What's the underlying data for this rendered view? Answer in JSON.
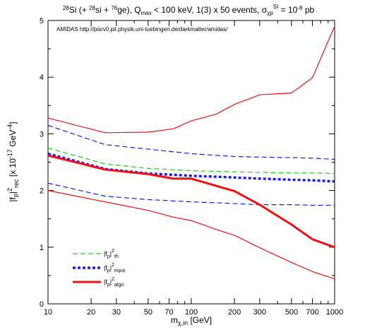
{
  "chart_data": {
    "type": "line",
    "title": "28Si (+ 28si + 76ge), Qmax < 100 keV, 1(3) x 50 events, σχpSI = 10−8 pb",
    "title_parts": {
      "sup1": "28",
      "t1": "Si (+ ",
      "sup2": "28",
      "t2": "si + ",
      "sup3": "76",
      "t3": "ge), Q",
      "sub_max": "max",
      "t4": " < 100 keV, 1(3) x 50 events, σ",
      "sub_chi": "χp",
      "sup_si": "SI",
      "t5": " = 10",
      "sup_exp": "-8",
      "t6": " pb"
    },
    "annotation": "AMIDAS   http://pisrv0.pit.physik.uni-tuebingen.de/darkmatter/amidas/",
    "xlabel": "mχ,in [GeV]",
    "xlabel_parts": {
      "main": "m",
      "sub": "χ,in",
      "rest": " [GeV]"
    },
    "ylabel": "|fp|2rec [x 10−17 GeV−4]",
    "ylabel_parts": {
      "a": "|f",
      "sub_p": "p",
      "b": "|",
      "sup_2": "2",
      "sub_rec": "rec",
      "c": "  [x 10",
      "sup_m17": "-17",
      "d": " GeV",
      "sup_m4": "-4",
      "e": "]"
    },
    "x_scale": "log",
    "xlim": [
      10,
      1000
    ],
    "ylim": [
      0,
      5
    ],
    "x_ticks": [
      10,
      20,
      30,
      50,
      70,
      100,
      200,
      300,
      500,
      700,
      1000
    ],
    "y_ticks": [
      0,
      1,
      2,
      3,
      4,
      5
    ],
    "grid": false,
    "legend_position": "bottom-left",
    "legend": [
      {
        "base": "|f",
        "sub1": "p",
        "mid": "|",
        "sup": "2",
        "sub2": "th",
        "series": "th"
      },
      {
        "base": "|f",
        "sub1": "p",
        "mid": "|",
        "sup": "2",
        "sub2": "input",
        "series": "input"
      },
      {
        "base": "|f",
        "sub1": "p",
        "mid": "|",
        "sup": "2",
        "sub2": "algo",
        "series": "algo"
      }
    ],
    "colors": {
      "th": "#22cc22",
      "input": "#1a1aee",
      "algo": "#ee1111"
    },
    "series": [
      {
        "key": "th",
        "role": "main",
        "style": "dashed-thin",
        "color": "#22cc22",
        "x": [
          10,
          25,
          50,
          100,
          200,
          300,
          500,
          700,
          1000
        ],
        "y": [
          2.75,
          2.47,
          2.39,
          2.35,
          2.33,
          2.32,
          2.31,
          2.31,
          2.3
        ]
      },
      {
        "key": "input",
        "role": "main",
        "style": "dotted-thick",
        "color": "#1a1aee",
        "x": [
          10,
          25,
          50,
          100,
          200,
          300,
          500,
          700,
          1000
        ],
        "y": [
          2.65,
          2.38,
          2.3,
          2.26,
          2.23,
          2.21,
          2.19,
          2.18,
          2.16
        ]
      },
      {
        "key": "input",
        "role": "upper",
        "style": "dashed-thin",
        "color": "#1a1aee",
        "x": [
          10,
          25,
          50,
          100,
          200,
          300,
          500,
          700,
          1000
        ],
        "y": [
          3.15,
          2.81,
          2.73,
          2.65,
          2.6,
          2.59,
          2.58,
          2.57,
          2.55
        ]
      },
      {
        "key": "input",
        "role": "lower",
        "style": "dashed-thin",
        "color": "#1a1aee",
        "x": [
          10,
          25,
          50,
          100,
          200,
          300,
          500,
          700,
          1000
        ],
        "y": [
          2.13,
          1.9,
          1.84,
          1.8,
          1.77,
          1.75,
          1.75,
          1.74,
          1.74
        ]
      },
      {
        "key": "algo",
        "role": "main",
        "style": "solid-thick",
        "color": "#ee1111",
        "x": [
          10,
          25,
          50,
          75,
          100,
          200,
          300,
          500,
          700,
          1000
        ],
        "y": [
          2.62,
          2.37,
          2.29,
          2.21,
          2.21,
          1.99,
          1.75,
          1.4,
          1.14,
          1.0
        ]
      },
      {
        "key": "algo",
        "role": "upper",
        "style": "solid-thin",
        "color": "#ee1111",
        "x": [
          10,
          25,
          50,
          75,
          100,
          150,
          200,
          300,
          500,
          700,
          1000
        ],
        "y": [
          3.28,
          3.02,
          3.03,
          3.09,
          3.23,
          3.35,
          3.52,
          3.69,
          3.72,
          3.99,
          4.9
        ]
      },
      {
        "key": "algo",
        "role": "lower",
        "style": "solid-thin",
        "color": "#ee1111",
        "x": [
          10,
          25,
          50,
          75,
          100,
          150,
          200,
          300,
          500,
          700,
          1000
        ],
        "y": [
          2.0,
          1.8,
          1.65,
          1.53,
          1.47,
          1.31,
          1.21,
          0.99,
          0.73,
          0.57,
          0.44
        ]
      }
    ]
  }
}
